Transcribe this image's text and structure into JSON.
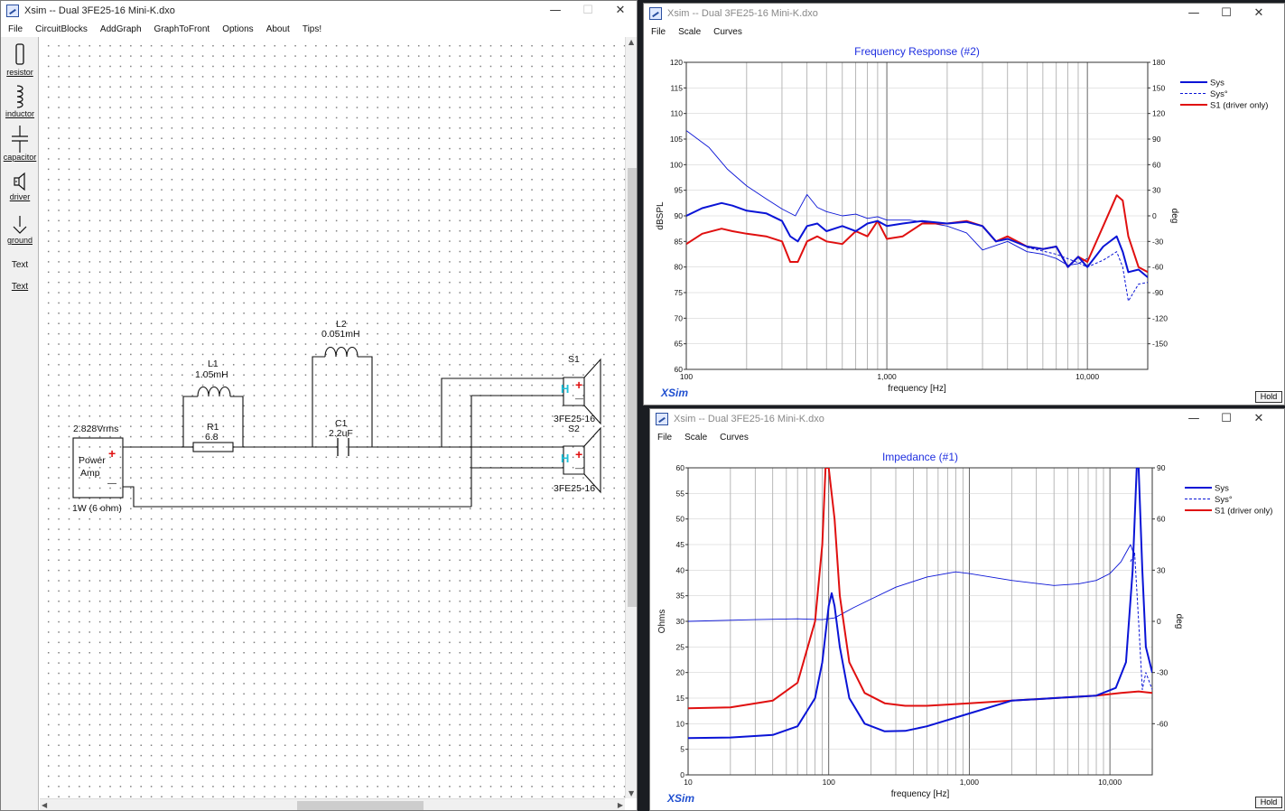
{
  "circuit_window": {
    "title": "Xsim -- Dual 3FE25-16 Mini-K.dxo",
    "menu": [
      "File",
      "CircuitBlocks",
      "AddGraph",
      "GraphToFront",
      "Options",
      "About",
      "Tips!"
    ],
    "palette": [
      "resistor",
      "inductor",
      "capacitor",
      "driver",
      "ground",
      "Text",
      "Text"
    ],
    "components": {
      "amp_voltage": "2.828Vrms",
      "amp_name_line1": "Power",
      "amp_name_line2": "Amp",
      "amp_power": "1W (6 ohm)",
      "amp_plus": "+",
      "amp_minus": "—",
      "l1_name": "L1",
      "l1_value": "1.05mH",
      "r1_name": "R1",
      "r1_value": "6.8",
      "l2_name": "L2",
      "l2_value": "0.051mH",
      "c1_name": "C1",
      "c1_value": "2.2uF",
      "s1_name": "S1",
      "s1_model": "3FE25-16",
      "s2_name": "S2",
      "s2_model": "3FE25-16",
      "driver_h": "H",
      "driver_plus": "+",
      "driver_minus": "—"
    }
  },
  "freq_window": {
    "title": "Xsim -- Dual 3FE25-16 Mini-K.dxo",
    "menu": [
      "File",
      "Scale",
      "Curves"
    ],
    "brand": "XSim",
    "hold": "Hold",
    "chart_data": {
      "type": "line",
      "title": "Frequency Response (#2)",
      "xlabel": "frequency [Hz]",
      "ylabel": "dBSPL",
      "y2label": "deg",
      "xscale": "log",
      "xlim": [
        100,
        20000
      ],
      "ylim": [
        60,
        120
      ],
      "y2lim": [
        -180,
        180
      ],
      "x_tick_labels": [
        "100",
        "1,000",
        "10,000"
      ],
      "y_tick_labels": [
        "120",
        "115",
        "110",
        "105",
        "100",
        "95",
        "90",
        "85",
        "80",
        "75",
        "70",
        "65",
        "60"
      ],
      "y2_tick_labels": [
        "180",
        "150",
        "120",
        "90",
        "60",
        "30",
        "0",
        "-30",
        "-60",
        "-90",
        "-120",
        "-150"
      ],
      "legend_position": "right",
      "series": [
        {
          "name": "Sys",
          "color": "#0a14d6",
          "style": "thick",
          "axis": "y",
          "x": [
            100,
            120,
            150,
            170,
            200,
            250,
            300,
            330,
            360,
            400,
            450,
            500,
            600,
            700,
            800,
            900,
            1000,
            1200,
            1500,
            2000,
            2500,
            3000,
            3500,
            4000,
            5000,
            6000,
            7000,
            8000,
            9000,
            10000,
            12000,
            14000,
            15000,
            16000,
            18000,
            20000
          ],
          "y": [
            90,
            91.5,
            92.5,
            92,
            91,
            90.5,
            89,
            86,
            85,
            88,
            88.5,
            87,
            88,
            87,
            88.5,
            89,
            88,
            88.5,
            89,
            88.5,
            88.8,
            88,
            85,
            85.5,
            84,
            83.5,
            84,
            80,
            82,
            80,
            84,
            86,
            83,
            79,
            79.5,
            78
          ]
        },
        {
          "name": "Sys°",
          "color": "#0a14d6",
          "style": "dashed",
          "axis": "y2",
          "x": [
            5000,
            7000,
            9000,
            10000,
            12000,
            14000,
            15000,
            16000,
            18000,
            20000
          ],
          "y": [
            -37,
            -45,
            -55,
            -60,
            -52,
            -42,
            -60,
            -100,
            -80,
            -78
          ]
        },
        {
          "name": "S1 (driver only)",
          "color": "#e01010",
          "style": "thick",
          "axis": "y",
          "x": [
            100,
            120,
            150,
            170,
            200,
            250,
            300,
            330,
            360,
            400,
            450,
            500,
            600,
            700,
            800,
            900,
            1000,
            1200,
            1500,
            2000,
            2500,
            3000,
            3500,
            4000,
            5000,
            6000,
            7000,
            8000,
            9000,
            10000,
            12000,
            14000,
            15000,
            16000,
            18000,
            20000
          ],
          "y": [
            84.5,
            86.5,
            87.5,
            87,
            86.5,
            86,
            85,
            81,
            81,
            85,
            86,
            85,
            84.5,
            87,
            86,
            89,
            85.5,
            86,
            88.5,
            88.5,
            89,
            88,
            85,
            86,
            84,
            83.5,
            84,
            80,
            82,
            81,
            88,
            94,
            93,
            86,
            80,
            79
          ]
        },
        {
          "name": "",
          "color": "#0a14d6",
          "style": "thin",
          "axis": "y2",
          "x": [
            100,
            130,
            160,
            200,
            250,
            300,
            350,
            400,
            450,
            500,
            600,
            700,
            800,
            900,
            1000,
            1300,
            1600,
            2000,
            2500,
            3000,
            4000,
            5000,
            6000,
            7000,
            8000,
            9000,
            10000
          ],
          "y": [
            100,
            80,
            55,
            35,
            20,
            8,
            0,
            25,
            10,
            5,
            0,
            2,
            -3,
            -1,
            -5,
            -5,
            -8,
            -12,
            -20,
            -40,
            -30,
            -42,
            -45,
            -50,
            -58,
            -56,
            -50
          ]
        }
      ]
    }
  },
  "imp_window": {
    "title": "Xsim -- Dual 3FE25-16 Mini-K.dxo",
    "menu": [
      "File",
      "Scale",
      "Curves"
    ],
    "brand": "XSim",
    "hold": "Hold",
    "chart_data": {
      "type": "line",
      "title": "Impedance (#1)",
      "xlabel": "frequency [Hz]",
      "ylabel": "Ohms",
      "y2label": "deg",
      "xscale": "log",
      "xlim": [
        10,
        20000
      ],
      "ylim": [
        0,
        60
      ],
      "y2lim": [
        -90,
        90
      ],
      "x_tick_labels": [
        "10",
        "100",
        "1,000",
        "10,000"
      ],
      "y_tick_labels": [
        "60",
        "55",
        "50",
        "45",
        "40",
        "35",
        "30",
        "25",
        "20",
        "15",
        "10",
        "5",
        "0"
      ],
      "y2_tick_labels": [
        "90",
        "60",
        "30",
        "0",
        "-30",
        "-60"
      ],
      "legend_position": "right",
      "series": [
        {
          "name": "Sys",
          "color": "#0a14d6",
          "style": "thick",
          "axis": "y",
          "x": [
            10,
            20,
            40,
            60,
            80,
            90,
            100,
            105,
            110,
            120,
            140,
            180,
            250,
            350,
            500,
            1000,
            2000,
            4000,
            8000,
            11000,
            13000,
            14500,
            15500,
            16000,
            17000,
            18000,
            20000
          ],
          "y": [
            7.2,
            7.3,
            7.8,
            9.5,
            15,
            22,
            33,
            35.5,
            33,
            25,
            15,
            10,
            8.5,
            8.6,
            9.5,
            12,
            14.5,
            15,
            15.5,
            17,
            22,
            40,
            60,
            60,
            40,
            25,
            20
          ]
        },
        {
          "name": "Sys°",
          "color": "#0a14d6",
          "style": "dashed",
          "axis": "y2",
          "x": [
            14000,
            15000,
            16000,
            17000,
            18000,
            20000
          ],
          "y": [
            35,
            40,
            0,
            -40,
            -30,
            -40
          ]
        },
        {
          "name": "S1 (driver only)",
          "color": "#e01010",
          "style": "thick",
          "axis": "y",
          "x": [
            10,
            20,
            40,
            60,
            80,
            90,
            95,
            100,
            110,
            120,
            140,
            180,
            250,
            350,
            500,
            1000,
            2000,
            4000,
            8000,
            12000,
            16000,
            20000
          ],
          "y": [
            13,
            13.2,
            14.5,
            18,
            30,
            45,
            60,
            60,
            50,
            35,
            22,
            16,
            14,
            13.5,
            13.5,
            14,
            14.5,
            15,
            15.5,
            16,
            16.3,
            16
          ]
        },
        {
          "name": "",
          "color": "#0a14d6",
          "style": "thin",
          "axis": "y2",
          "x": [
            10,
            30,
            60,
            90,
            110,
            150,
            200,
            300,
            500,
            800,
            1000,
            2000,
            4000,
            6000,
            8000,
            10000,
            12000,
            14000,
            15000
          ],
          "y": [
            0,
            1,
            1.5,
            1,
            2,
            8,
            13,
            20,
            26,
            29,
            28,
            24,
            21,
            22,
            24,
            28,
            35,
            45,
            38
          ]
        }
      ]
    }
  }
}
